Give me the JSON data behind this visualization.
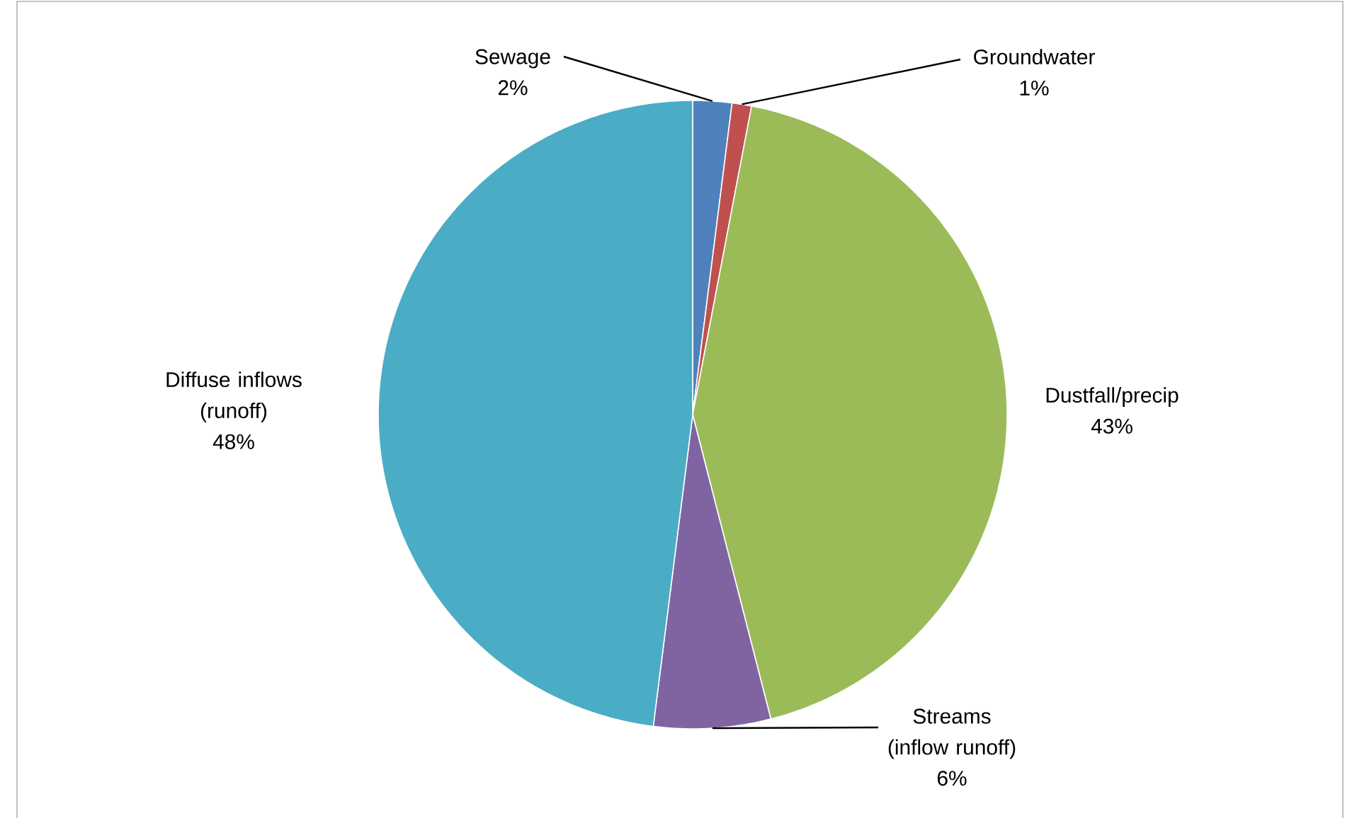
{
  "chart_data": {
    "type": "pie",
    "categories": [
      "Sewage",
      "Groundwater",
      "Dustfall/precip",
      "Streams (inflow runoff)",
      "Diffuse inflows (runoff)"
    ],
    "values": [
      2,
      1,
      43,
      6,
      48
    ],
    "value_labels": [
      "2%",
      "1%",
      "43%",
      "6%",
      "48%"
    ],
    "colors": [
      "#4f81bd",
      "#c0504d",
      "#9bbb59",
      "#8064a2",
      "#4bacc6"
    ]
  }
}
